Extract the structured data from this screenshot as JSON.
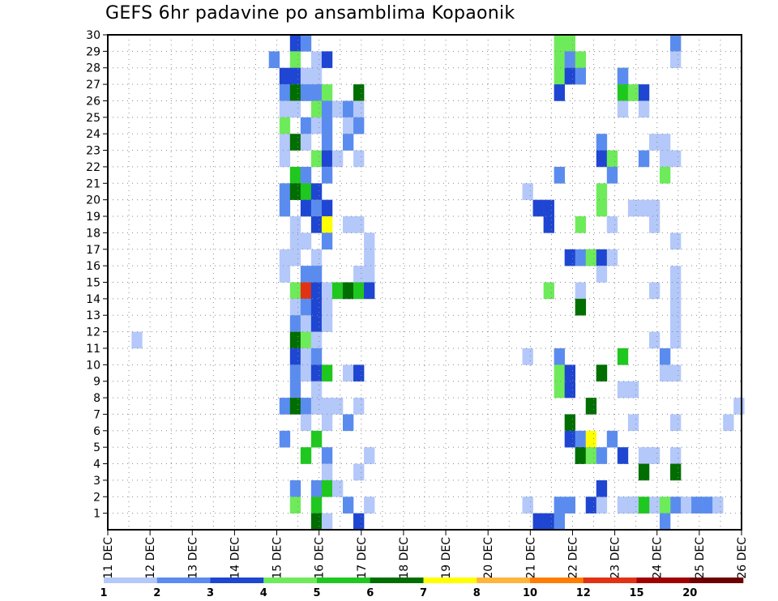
{
  "chart_data": {
    "type": "heatmap",
    "title": "GEFS 6hr padavine po ansamblima Kopaonik",
    "xlabel": "",
    "ylabel": "",
    "x_ticks": [
      "11 DEC",
      "12 DEC",
      "13 DEC",
      "14 DEC",
      "15 DEC",
      "16 DEC",
      "17 DEC",
      "18 DEC",
      "19 DEC",
      "20 DEC",
      "21 DEC",
      "22 DEC",
      "23 DEC",
      "24 DEC",
      "25 DEC",
      "26 DEC"
    ],
    "y_ticks": [
      "1",
      "2",
      "3",
      "4",
      "5",
      "6",
      "7",
      "8",
      "9",
      "10",
      "11",
      "12",
      "13",
      "14",
      "15",
      "16",
      "17",
      "18",
      "19",
      "20",
      "21",
      "22",
      "23",
      "24",
      "25",
      "26",
      "27",
      "28",
      "29",
      "30"
    ],
    "xlim": [
      0,
      60
    ],
    "ylim": [
      0,
      30
    ],
    "grid": true,
    "legend": {
      "position": "bottom",
      "labels": [
        "1",
        "2",
        "3",
        "4",
        "5",
        "6",
        "7",
        "8",
        "10",
        "12",
        "15",
        "20"
      ],
      "colors": [
        "#b4c8fa",
        "#5a8cf0",
        "#1e46d2",
        "#6eeb5a",
        "#1ec81e",
        "#006e00",
        "#ffff00",
        "#ffb43c",
        "#ff7d00",
        "#e13214",
        "#a00000",
        "#6e0000"
      ]
    },
    "cells": [
      [
        39.25,
        1,
        0
      ],
      [
        40.25,
        0,
        2
      ],
      [
        41.25,
        0,
        2
      ],
      [
        42.25,
        1,
        1
      ],
      [
        43.25,
        1,
        1
      ],
      [
        44.25,
        5,
        0
      ],
      [
        45.25,
        1,
        2
      ],
      [
        46.25,
        1,
        0
      ],
      [
        47.25,
        5,
        1
      ],
      [
        48.25,
        1,
        0
      ],
      [
        49.25,
        1,
        0
      ],
      [
        51.25,
        1,
        0
      ],
      [
        52.25,
        1,
        0
      ],
      [
        53.25,
        1,
        1
      ],
      [
        54.25,
        1,
        0
      ],
      [
        55.25,
        1,
        1
      ],
      [
        56.25,
        1,
        1
      ],
      [
        57.25,
        1,
        0
      ],
      [
        58.25,
        6,
        0
      ],
      [
        59.25,
        7,
        0
      ],
      [
        2.25,
        11,
        0
      ],
      [
        15.25,
        28,
        1
      ],
      [
        16.25,
        27,
        2
      ],
      [
        16.25,
        26,
        1
      ],
      [
        16.25,
        25,
        0
      ],
      [
        16.25,
        24,
        3
      ],
      [
        16.25,
        23,
        0
      ],
      [
        16.25,
        22,
        0
      ],
      [
        16.25,
        20,
        1
      ],
      [
        16.25,
        19,
        1
      ],
      [
        16.25,
        16,
        0
      ],
      [
        16.25,
        15,
        0
      ],
      [
        16.25,
        7,
        1
      ],
      [
        16.25,
        5,
        1
      ],
      [
        17.25,
        29,
        2
      ],
      [
        17.25,
        28,
        3
      ],
      [
        17.25,
        27,
        2
      ],
      [
        17.25,
        26,
        5
      ],
      [
        17.25,
        25,
        0
      ],
      [
        17.25,
        23,
        5
      ],
      [
        17.25,
        21,
        4
      ],
      [
        17.25,
        20,
        5
      ],
      [
        17.25,
        18,
        0
      ],
      [
        17.25,
        17,
        0
      ],
      [
        17.25,
        16,
        0
      ],
      [
        17.25,
        14,
        3
      ],
      [
        17.25,
        13,
        0
      ],
      [
        17.25,
        12,
        1
      ],
      [
        17.25,
        11,
        5
      ],
      [
        17.25,
        10,
        2
      ],
      [
        17.25,
        9,
        1
      ],
      [
        17.25,
        8,
        1
      ],
      [
        17.25,
        7,
        5
      ],
      [
        17.25,
        2,
        1
      ],
      [
        17.25,
        1,
        3
      ],
      [
        18.25,
        29,
        1
      ],
      [
        18.25,
        27,
        0
      ],
      [
        18.25,
        26,
        1
      ],
      [
        18.25,
        24,
        1
      ],
      [
        18.25,
        23,
        0
      ],
      [
        18.25,
        21,
        1
      ],
      [
        18.25,
        20,
        4
      ],
      [
        18.25,
        19,
        2
      ],
      [
        18.25,
        17,
        0
      ],
      [
        18.25,
        15,
        1
      ],
      [
        18.25,
        14,
        9
      ],
      [
        18.25,
        13,
        1
      ],
      [
        18.25,
        12,
        0
      ],
      [
        18.25,
        11,
        3
      ],
      [
        18.25,
        10,
        0
      ],
      [
        18.25,
        9,
        0
      ],
      [
        18.25,
        7,
        1
      ],
      [
        18.25,
        6,
        0
      ],
      [
        18.25,
        4,
        4
      ],
      [
        19.25,
        28,
        0
      ],
      [
        19.25,
        27,
        0
      ],
      [
        19.25,
        26,
        1
      ],
      [
        19.25,
        25,
        3
      ],
      [
        19.25,
        24,
        0
      ],
      [
        19.25,
        22,
        3
      ],
      [
        19.25,
        20,
        2
      ],
      [
        19.25,
        19,
        1
      ],
      [
        19.25,
        18,
        2
      ],
      [
        19.25,
        16,
        0
      ],
      [
        19.25,
        15,
        1
      ],
      [
        19.25,
        14,
        2
      ],
      [
        19.25,
        13,
        2
      ],
      [
        19.25,
        12,
        2
      ],
      [
        19.25,
        11,
        0
      ],
      [
        19.25,
        10,
        1
      ],
      [
        19.25,
        9,
        2
      ],
      [
        19.25,
        8,
        0
      ],
      [
        19.25,
        7,
        0
      ],
      [
        19.25,
        5,
        4
      ],
      [
        19.25,
        2,
        1
      ],
      [
        19.25,
        1,
        4
      ],
      [
        19.25,
        0,
        5
      ],
      [
        20.25,
        28,
        2
      ],
      [
        20.25,
        26,
        3
      ],
      [
        20.25,
        25,
        1
      ],
      [
        20.25,
        24,
        1
      ],
      [
        20.25,
        23,
        1
      ],
      [
        20.25,
        22,
        2
      ],
      [
        20.25,
        21,
        1
      ],
      [
        20.25,
        19,
        2
      ],
      [
        20.25,
        18,
        6
      ],
      [
        20.25,
        17,
        1
      ],
      [
        20.25,
        14,
        0
      ],
      [
        20.25,
        13,
        0
      ],
      [
        20.25,
        12,
        0
      ],
      [
        20.25,
        9,
        4
      ],
      [
        20.25,
        7,
        0
      ],
      [
        20.25,
        6,
        0
      ],
      [
        20.25,
        4,
        1
      ],
      [
        20.25,
        3,
        0
      ],
      [
        20.25,
        2,
        4
      ],
      [
        20.25,
        0,
        0
      ],
      [
        21.25,
        25,
        0
      ],
      [
        21.25,
        22,
        0
      ],
      [
        21.25,
        14,
        4
      ],
      [
        21.25,
        7,
        0
      ],
      [
        21.25,
        2,
        0
      ],
      [
        22.25,
        25,
        1
      ],
      [
        22.25,
        24,
        0
      ],
      [
        22.25,
        23,
        1
      ],
      [
        22.25,
        18,
        0
      ],
      [
        22.25,
        14,
        2
      ],
      [
        22.25,
        14,
        5
      ],
      [
        22.25,
        9,
        0
      ],
      [
        22.25,
        6,
        1
      ],
      [
        22.25,
        1,
        1
      ],
      [
        23.25,
        26,
        5
      ],
      [
        23.25,
        25,
        0
      ],
      [
        23.25,
        24,
        1
      ],
      [
        23.25,
        22,
        0
      ],
      [
        23.25,
        18,
        0
      ],
      [
        23.25,
        15,
        0
      ],
      [
        23.25,
        14,
        0
      ],
      [
        23.25,
        14,
        4
      ],
      [
        23.25,
        9,
        2
      ],
      [
        23.25,
        7,
        0
      ],
      [
        23.25,
        3,
        0
      ],
      [
        23.25,
        0,
        2
      ],
      [
        24.25,
        17,
        0
      ],
      [
        24.25,
        16,
        0
      ],
      [
        24.25,
        15,
        0
      ],
      [
        24.25,
        14,
        2
      ],
      [
        24.25,
        4,
        0
      ],
      [
        24.25,
        1,
        0
      ],
      [
        39.25,
        20,
        0
      ],
      [
        39.25,
        10,
        0
      ],
      [
        39.25,
        1,
        0
      ],
      [
        40.25,
        19,
        2
      ],
      [
        41.25,
        19,
        2
      ],
      [
        41.25,
        18,
        2
      ],
      [
        41.25,
        14,
        3
      ],
      [
        42.25,
        29,
        3
      ],
      [
        42.25,
        28,
        3
      ],
      [
        42.25,
        27,
        3
      ],
      [
        42.25,
        26,
        2
      ],
      [
        42.25,
        21,
        1
      ],
      [
        42.25,
        10,
        1
      ],
      [
        42.25,
        9,
        3
      ],
      [
        42.25,
        8,
        3
      ],
      [
        42.25,
        0,
        1
      ],
      [
        43.25,
        29,
        3
      ],
      [
        43.25,
        28,
        1
      ],
      [
        43.25,
        27,
        2
      ],
      [
        43.25,
        16,
        2
      ],
      [
        43.25,
        9,
        2
      ],
      [
        43.25,
        8,
        2
      ],
      [
        43.25,
        6,
        5
      ],
      [
        43.25,
        5,
        2
      ],
      [
        44.25,
        28,
        3
      ],
      [
        44.25,
        27,
        1
      ],
      [
        44.25,
        18,
        3
      ],
      [
        44.25,
        16,
        1
      ],
      [
        44.25,
        14,
        0
      ],
      [
        44.25,
        13,
        5
      ],
      [
        44.25,
        5,
        1
      ],
      [
        44.25,
        4,
        2
      ],
      [
        44.25,
        4,
        5
      ],
      [
        45.25,
        16,
        1
      ],
      [
        45.25,
        16,
        3
      ],
      [
        45.25,
        7,
        5
      ],
      [
        45.25,
        5,
        6
      ],
      [
        45.25,
        4,
        3
      ],
      [
        46.25,
        23,
        1
      ],
      [
        46.25,
        22,
        2
      ],
      [
        46.25,
        20,
        3
      ],
      [
        46.25,
        19,
        3
      ],
      [
        46.25,
        16,
        2
      ],
      [
        46.25,
        15,
        0
      ],
      [
        46.25,
        9,
        4
      ],
      [
        46.25,
        9,
        5
      ],
      [
        46.25,
        4,
        1
      ],
      [
        46.25,
        2,
        2
      ],
      [
        47.25,
        22,
        3
      ],
      [
        47.25,
        21,
        1
      ],
      [
        47.25,
        18,
        0
      ],
      [
        47.25,
        16,
        0
      ],
      [
        48.25,
        27,
        4
      ],
      [
        48.25,
        27,
        1
      ],
      [
        48.25,
        26,
        4
      ],
      [
        48.25,
        25,
        0
      ],
      [
        48.25,
        10,
        4
      ],
      [
        48.25,
        8,
        0
      ],
      [
        48.25,
        4,
        2
      ],
      [
        48.25,
        1,
        0
      ],
      [
        49.25,
        26,
        3
      ],
      [
        49.25,
        19,
        0
      ],
      [
        49.25,
        8,
        0
      ],
      [
        49.25,
        6,
        0
      ],
      [
        49.25,
        1,
        3
      ],
      [
        49.25,
        1,
        0
      ],
      [
        50.25,
        26,
        2
      ],
      [
        50.25,
        25,
        0
      ],
      [
        50.25,
        22,
        1
      ],
      [
        50.25,
        19,
        0
      ],
      [
        50.25,
        4,
        0
      ],
      [
        50.25,
        3,
        5
      ],
      [
        50.25,
        1,
        4
      ],
      [
        51.25,
        23,
        0
      ],
      [
        51.25,
        19,
        0
      ],
      [
        51.25,
        18,
        0
      ],
      [
        51.25,
        14,
        0
      ],
      [
        51.25,
        11,
        0
      ],
      [
        51.25,
        4,
        0
      ],
      [
        52.25,
        23,
        0
      ],
      [
        52.25,
        22,
        0
      ],
      [
        52.25,
        21,
        3
      ],
      [
        52.25,
        10,
        1
      ],
      [
        52.25,
        9,
        0
      ],
      [
        52.25,
        1,
        3
      ],
      [
        52.25,
        0,
        1
      ],
      [
        53.25,
        29,
        1
      ],
      [
        53.25,
        28,
        0
      ],
      [
        53.25,
        22,
        0
      ],
      [
        53.25,
        17,
        0
      ],
      [
        53.25,
        15,
        0
      ],
      [
        53.25,
        14,
        0
      ],
      [
        53.25,
        13,
        0
      ],
      [
        53.25,
        12,
        0
      ],
      [
        53.25,
        11,
        0
      ],
      [
        53.25,
        9,
        0
      ],
      [
        53.25,
        6,
        0
      ],
      [
        53.25,
        4,
        0
      ],
      [
        53.25,
        3,
        5
      ]
    ]
  }
}
